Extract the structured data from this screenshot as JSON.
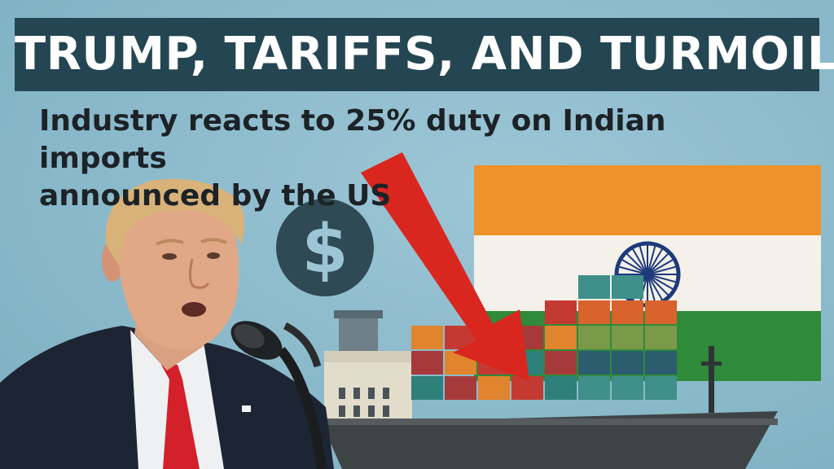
{
  "headline": {
    "title": "TRUMP, TARIFFS, AND TURMOIL"
  },
  "subheadline": {
    "line1": "Industry reacts to 25% duty on Indian imports",
    "line2": "announced by the US"
  },
  "icons": {
    "dollar": "$"
  },
  "colors": {
    "headline_bar": "#244652",
    "background": "#8fbccd",
    "arrow": "#d9261e",
    "saffron": "#f0922a",
    "flag_white": "#f3f1ea",
    "flag_green": "#2f8a3a",
    "chakra": "#1d3a7a",
    "ship_hull": "#3e4446"
  }
}
